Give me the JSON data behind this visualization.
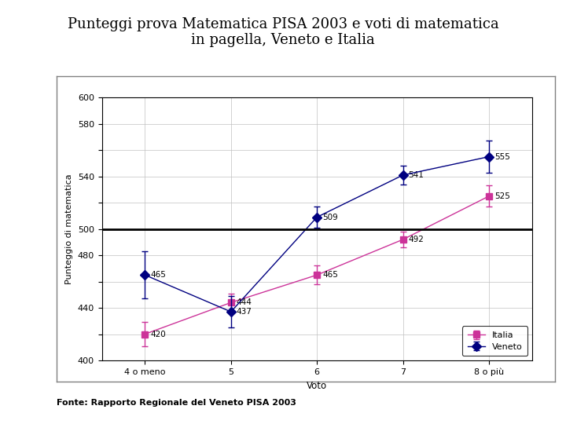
{
  "title_line1": "Punteggi prova Matematica PISA 2003 e voti di matematica",
  "title_line2": "in pagella, Veneto e Italia",
  "title_color": "#000000",
  "xlabel": "Voto",
  "ylabel": "Punteggio di matematica",
  "source": "Fonte: Rapporto Regionale del Veneto PISA 2003",
  "xtick_labels": [
    "4 o meno",
    "5",
    "6",
    "7",
    "8 o più"
  ],
  "veneto_values": [
    465,
    437,
    509,
    541,
    555
  ],
  "italia_values": [
    420,
    444,
    465,
    492,
    525
  ],
  "veneto_errors": [
    18,
    12,
    8,
    7,
    12
  ],
  "italia_errors": [
    9,
    7,
    7,
    6,
    8
  ],
  "veneto_color": "#000080",
  "italia_color": "#CC3399",
  "ylim": [
    400,
    600
  ],
  "ytick_vals": [
    400,
    420,
    440,
    460,
    480,
    500,
    520,
    540,
    560,
    580,
    600
  ],
  "ytick_labels": [
    "400",
    "",
    "440",
    "",
    "480",
    "500",
    "",
    "540",
    "",
    "580",
    "600"
  ],
  "hline_y": 500,
  "bg_color": "#ffffff",
  "plot_bg_color": "#ffffff",
  "legend_labels": [
    "Veneto",
    "Italia"
  ],
  "grid_color": "#c0c0c0",
  "chart_border_color": "#808080"
}
